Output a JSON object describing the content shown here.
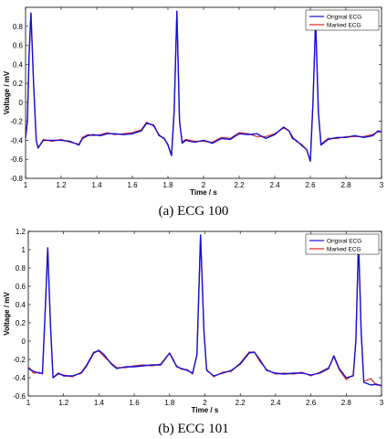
{
  "chart_data": [
    {
      "type": "line",
      "caption": "(a) ECG 100",
      "xlabel": "Time / s",
      "ylabel": "Voltage / mV",
      "xlim": [
        1,
        3
      ],
      "ylim": [
        -0.8,
        1
      ],
      "x_ticks": [
        "1",
        "1.2",
        "1.4",
        "1.6",
        "1.8",
        "2",
        "2.2",
        "2.4",
        "2.6",
        "2.8",
        "3"
      ],
      "y_ticks": [
        "-0.8",
        "-0.6",
        "-0.4",
        "-0.2",
        "0",
        "0.2",
        "0.4",
        "0.6",
        "0.8"
      ],
      "grid": false,
      "legend_position": "top-right",
      "colors": {
        "original": "#1010d8",
        "marked": "#e02020"
      },
      "series": [
        {
          "name": "Original ECG",
          "x": [
            1.0,
            1.01,
            1.02,
            1.03,
            1.045,
            1.06,
            1.07,
            1.1,
            1.15,
            1.2,
            1.25,
            1.3,
            1.32,
            1.35,
            1.38,
            1.42,
            1.46,
            1.5,
            1.55,
            1.6,
            1.65,
            1.68,
            1.72,
            1.75,
            1.78,
            1.8,
            1.82,
            1.835,
            1.85,
            1.865,
            1.88,
            1.9,
            1.95,
            2.0,
            2.05,
            2.1,
            2.15,
            2.2,
            2.25,
            2.3,
            2.35,
            2.4,
            2.45,
            2.48,
            2.5,
            2.52,
            2.55,
            2.58,
            2.6,
            2.615,
            2.63,
            2.645,
            2.66,
            2.7,
            2.75,
            2.8,
            2.85,
            2.9,
            2.95,
            2.98,
            3.0
          ],
          "y": [
            -0.37,
            -0.2,
            0.5,
            0.94,
            0.2,
            -0.4,
            -0.48,
            -0.4,
            -0.4,
            -0.4,
            -0.41,
            -0.45,
            -0.38,
            -0.35,
            -0.34,
            -0.35,
            -0.33,
            -0.33,
            -0.34,
            -0.33,
            -0.3,
            -0.22,
            -0.24,
            -0.35,
            -0.38,
            -0.45,
            -0.56,
            -0.1,
            0.96,
            -0.2,
            -0.43,
            -0.4,
            -0.42,
            -0.4,
            -0.43,
            -0.38,
            -0.39,
            -0.33,
            -0.34,
            -0.33,
            -0.38,
            -0.34,
            -0.26,
            -0.3,
            -0.38,
            -0.4,
            -0.45,
            -0.5,
            -0.62,
            0.0,
            0.87,
            -0.1,
            -0.45,
            -0.39,
            -0.37,
            -0.37,
            -0.35,
            -0.37,
            -0.35,
            -0.3,
            -0.31
          ]
        },
        {
          "name": "Marked ECG",
          "x": [
            1.0,
            1.01,
            1.02,
            1.03,
            1.045,
            1.06,
            1.07,
            1.1,
            1.15,
            1.2,
            1.25,
            1.3,
            1.32,
            1.35,
            1.38,
            1.42,
            1.46,
            1.5,
            1.55,
            1.6,
            1.65,
            1.68,
            1.72,
            1.75,
            1.78,
            1.8,
            1.82,
            1.835,
            1.85,
            1.865,
            1.88,
            1.9,
            1.95,
            2.0,
            2.05,
            2.1,
            2.15,
            2.2,
            2.25,
            2.3,
            2.35,
            2.4,
            2.45,
            2.48,
            2.5,
            2.52,
            2.55,
            2.58,
            2.6,
            2.615,
            2.63,
            2.645,
            2.66,
            2.7,
            2.75,
            2.8,
            2.85,
            2.9,
            2.95,
            2.98,
            3.0
          ],
          "y": [
            -0.37,
            -0.2,
            0.5,
            0.94,
            0.2,
            -0.4,
            -0.48,
            -0.39,
            -0.41,
            -0.39,
            -0.42,
            -0.44,
            -0.37,
            -0.34,
            -0.35,
            -0.34,
            -0.32,
            -0.34,
            -0.33,
            -0.32,
            -0.29,
            -0.21,
            -0.25,
            -0.34,
            -0.39,
            -0.44,
            -0.56,
            -0.1,
            0.96,
            -0.2,
            -0.42,
            -0.39,
            -0.41,
            -0.41,
            -0.42,
            -0.37,
            -0.38,
            -0.32,
            -0.33,
            -0.36,
            -0.36,
            -0.33,
            -0.27,
            -0.3,
            -0.36,
            -0.41,
            -0.44,
            -0.5,
            -0.62,
            0.0,
            0.87,
            -0.1,
            -0.44,
            -0.38,
            -0.38,
            -0.36,
            -0.36,
            -0.36,
            -0.34,
            -0.31,
            -0.31
          ]
        }
      ]
    },
    {
      "type": "line",
      "caption": "(b) ECG 101",
      "xlabel": "Time / s",
      "ylabel": "Voltage / mV",
      "xlim": [
        1,
        3
      ],
      "ylim": [
        -0.6,
        1.2
      ],
      "x_ticks": [
        "1",
        "1.2",
        "1.4",
        "1.6",
        "1.8",
        "2",
        "2.2",
        "2.4",
        "2.6",
        "2.8",
        "3"
      ],
      "y_ticks": [
        "-0.6",
        "-0.4",
        "-0.2",
        "0",
        "0.2",
        "0.4",
        "0.6",
        "0.8",
        "1",
        "1.2"
      ],
      "grid": false,
      "legend_position": "top-right",
      "colors": {
        "original": "#1010d8",
        "marked": "#e02020"
      },
      "series": [
        {
          "name": "Original ECG",
          "x": [
            1.0,
            1.03,
            1.06,
            1.08,
            1.095,
            1.11,
            1.125,
            1.14,
            1.17,
            1.2,
            1.25,
            1.3,
            1.33,
            1.37,
            1.4,
            1.43,
            1.47,
            1.5,
            1.55,
            1.6,
            1.65,
            1.7,
            1.75,
            1.8,
            1.82,
            1.84,
            1.87,
            1.9,
            1.93,
            1.955,
            1.975,
            1.995,
            2.01,
            2.05,
            2.1,
            2.15,
            2.2,
            2.25,
            2.28,
            2.31,
            2.35,
            2.4,
            2.45,
            2.5,
            2.55,
            2.6,
            2.65,
            2.7,
            2.73,
            2.76,
            2.8,
            2.84,
            2.855,
            2.87,
            2.885,
            2.9,
            2.94,
            2.97,
            3.0
          ],
          "y": [
            -0.3,
            -0.33,
            -0.35,
            -0.35,
            0.3,
            1.02,
            0.2,
            -0.4,
            -0.35,
            -0.38,
            -0.38,
            -0.35,
            -0.27,
            -0.13,
            -0.1,
            -0.15,
            -0.25,
            -0.3,
            -0.28,
            -0.28,
            -0.27,
            -0.26,
            -0.26,
            -0.13,
            -0.2,
            -0.28,
            -0.3,
            -0.32,
            -0.35,
            -0.15,
            1.16,
            0.1,
            -0.32,
            -0.38,
            -0.35,
            -0.32,
            -0.25,
            -0.13,
            -0.12,
            -0.2,
            -0.32,
            -0.35,
            -0.36,
            -0.35,
            -0.35,
            -0.37,
            -0.35,
            -0.3,
            -0.16,
            -0.3,
            -0.4,
            -0.38,
            0.0,
            1.1,
            0.1,
            -0.45,
            -0.48,
            -0.47,
            -0.49
          ]
        },
        {
          "name": "Marked ECG",
          "x": [
            1.0,
            1.03,
            1.06,
            1.08,
            1.095,
            1.11,
            1.125,
            1.14,
            1.17,
            1.2,
            1.25,
            1.3,
            1.33,
            1.37,
            1.4,
            1.43,
            1.47,
            1.5,
            1.55,
            1.6,
            1.65,
            1.7,
            1.75,
            1.8,
            1.82,
            1.84,
            1.87,
            1.9,
            1.93,
            1.955,
            1.975,
            1.995,
            2.01,
            2.05,
            2.1,
            2.15,
            2.2,
            2.25,
            2.28,
            2.31,
            2.35,
            2.4,
            2.45,
            2.5,
            2.55,
            2.6,
            2.65,
            2.7,
            2.73,
            2.76,
            2.8,
            2.84,
            2.855,
            2.87,
            2.885,
            2.9,
            2.94,
            2.97,
            3.0
          ],
          "y": [
            -0.28,
            -0.35,
            -0.34,
            -0.36,
            0.3,
            1.02,
            0.2,
            -0.4,
            -0.36,
            -0.37,
            -0.39,
            -0.34,
            -0.26,
            -0.12,
            -0.11,
            -0.17,
            -0.24,
            -0.29,
            -0.29,
            -0.27,
            -0.26,
            -0.27,
            -0.25,
            -0.13,
            -0.21,
            -0.27,
            -0.31,
            -0.31,
            -0.36,
            -0.15,
            1.16,
            0.1,
            -0.31,
            -0.39,
            -0.34,
            -0.33,
            -0.24,
            -0.12,
            -0.12,
            -0.22,
            -0.31,
            -0.36,
            -0.35,
            -0.36,
            -0.34,
            -0.38,
            -0.34,
            -0.29,
            -0.17,
            -0.31,
            -0.42,
            -0.37,
            0.0,
            1.1,
            0.1,
            -0.44,
            -0.41,
            -0.48,
            -0.48
          ]
        }
      ]
    }
  ]
}
